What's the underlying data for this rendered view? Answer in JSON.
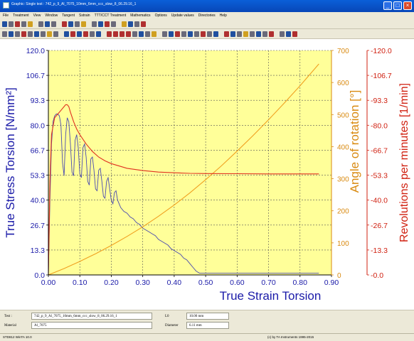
{
  "window": {
    "title": "Graphic: Single test : 742_p_9_Al_7075_10mm_6mm_ccc_slow_8_06.29.16_1",
    "minimize": "_",
    "maximize": "□",
    "close": "×"
  },
  "menu": [
    "File",
    "Treatment",
    "View",
    "Window",
    "Tangent",
    "Sstrain",
    "TTT/CCT Treatment",
    "Mathematics",
    "Options",
    "Update values",
    "Directories",
    "Help"
  ],
  "chart_data": {
    "type": "line",
    "xlabel": "True Strain Torsion",
    "ylabel_left": "True Stress Torsion  [N/mm²]",
    "ylabel_right1": "Angle of rotation  [°]",
    "ylabel_right2": "Revolutions per minutes  [1/min]",
    "x_ticks": [
      "0.00",
      "0.10",
      "0.20",
      "0.30",
      "0.40",
      "0.50",
      "0.60",
      "0.70",
      "0.80",
      "0.90"
    ],
    "y_left_ticks": [
      "0.0",
      "13.3",
      "26.7",
      "40.0",
      "53.3",
      "66.7",
      "80.0",
      "93.3",
      "106.7",
      "120.0"
    ],
    "y_right1_ticks": [
      "0",
      "100",
      "200",
      "300",
      "400",
      "500",
      "600",
      "700"
    ],
    "y_right2_ticks": [
      "-0.0",
      "-13.3",
      "-26.7",
      "-40.0",
      "-53.3",
      "-66.7",
      "-80.0",
      "-93.3",
      "-106.7",
      "-120.0"
    ],
    "xlim": [
      0,
      0.9
    ],
    "ylim_left": [
      0,
      120
    ],
    "ylim_right1": [
      0,
      700
    ],
    "grid": true,
    "colors": {
      "background": "#ffff99",
      "stress": "#4a4ab0",
      "angle": "#f0a020",
      "rpm": "#e03020",
      "left_axis": "#1a1aa8",
      "right1_axis": "#d98a10",
      "right2_axis": "#d02010"
    },
    "series": [
      {
        "id": "stress",
        "axis": "left",
        "points": [
          [
            0,
            0
          ],
          [
            0.005,
            40
          ],
          [
            0.01,
            70
          ],
          [
            0.015,
            82
          ],
          [
            0.02,
            85
          ],
          [
            0.025,
            86
          ],
          [
            0.03,
            86
          ],
          [
            0.035,
            85
          ],
          [
            0.04,
            80
          ],
          [
            0.045,
            60
          ],
          [
            0.05,
            53
          ],
          [
            0.055,
            75
          ],
          [
            0.06,
            84
          ],
          [
            0.065,
            82
          ],
          [
            0.07,
            70
          ],
          [
            0.075,
            55
          ],
          [
            0.08,
            53
          ],
          [
            0.085,
            72
          ],
          [
            0.09,
            75
          ],
          [
            0.095,
            68
          ],
          [
            0.1,
            54
          ],
          [
            0.105,
            52
          ],
          [
            0.11,
            68
          ],
          [
            0.115,
            70
          ],
          [
            0.12,
            63
          ],
          [
            0.125,
            50
          ],
          [
            0.13,
            48
          ],
          [
            0.135,
            62
          ],
          [
            0.14,
            63
          ],
          [
            0.145,
            56
          ],
          [
            0.15,
            46
          ],
          [
            0.155,
            45
          ],
          [
            0.16,
            56
          ],
          [
            0.165,
            57
          ],
          [
            0.17,
            50
          ],
          [
            0.175,
            42
          ],
          [
            0.18,
            41
          ],
          [
            0.185,
            50
          ],
          [
            0.19,
            52
          ],
          [
            0.195,
            46
          ],
          [
            0.2,
            40
          ],
          [
            0.205,
            38
          ],
          [
            0.21,
            44
          ],
          [
            0.215,
            45
          ],
          [
            0.22,
            40
          ],
          [
            0.23,
            36
          ],
          [
            0.24,
            34
          ],
          [
            0.25,
            33
          ],
          [
            0.26,
            31
          ],
          [
            0.27,
            30
          ],
          [
            0.28,
            28
          ],
          [
            0.29,
            27
          ],
          [
            0.3,
            25
          ],
          [
            0.31,
            24
          ],
          [
            0.32,
            23
          ],
          [
            0.33,
            22
          ],
          [
            0.34,
            21
          ],
          [
            0.35,
            19
          ],
          [
            0.36,
            18
          ],
          [
            0.37,
            17
          ],
          [
            0.38,
            16
          ],
          [
            0.39,
            14
          ],
          [
            0.4,
            13
          ],
          [
            0.41,
            12
          ],
          [
            0.42,
            11
          ],
          [
            0.43,
            9
          ],
          [
            0.44,
            8
          ],
          [
            0.45,
            6
          ],
          [
            0.46,
            4
          ],
          [
            0.47,
            2
          ],
          [
            0.48,
            1
          ],
          [
            0.5,
            1
          ],
          [
            0.55,
            1
          ],
          [
            0.6,
            1
          ],
          [
            0.65,
            1
          ],
          [
            0.7,
            1
          ],
          [
            0.75,
            1
          ],
          [
            0.8,
            1
          ],
          [
            0.86,
            1
          ]
        ]
      },
      {
        "id": "angle",
        "axis": "right1",
        "points": [
          [
            0,
            0
          ],
          [
            0.05,
            20
          ],
          [
            0.1,
            42
          ],
          [
            0.15,
            66
          ],
          [
            0.2,
            92
          ],
          [
            0.25,
            120
          ],
          [
            0.3,
            150
          ],
          [
            0.35,
            183
          ],
          [
            0.4,
            218
          ],
          [
            0.45,
            256
          ],
          [
            0.5,
            297
          ],
          [
            0.55,
            340
          ],
          [
            0.6,
            386
          ],
          [
            0.65,
            434
          ],
          [
            0.7,
            484
          ],
          [
            0.75,
            536
          ],
          [
            0.8,
            590
          ],
          [
            0.86,
            658
          ]
        ]
      },
      {
        "id": "rpm",
        "axis": "left",
        "points": [
          [
            0,
            0
          ],
          [
            0.005,
            50
          ],
          [
            0.01,
            75
          ],
          [
            0.02,
            84
          ],
          [
            0.03,
            86
          ],
          [
            0.04,
            88
          ],
          [
            0.05,
            90
          ],
          [
            0.055,
            91
          ],
          [
            0.06,
            91
          ],
          [
            0.065,
            90
          ],
          [
            0.07,
            87
          ],
          [
            0.08,
            82
          ],
          [
            0.09,
            78
          ],
          [
            0.1,
            75
          ],
          [
            0.12,
            70
          ],
          [
            0.14,
            66
          ],
          [
            0.16,
            63
          ],
          [
            0.18,
            61
          ],
          [
            0.2,
            59.5
          ],
          [
            0.25,
            57
          ],
          [
            0.3,
            55.8
          ],
          [
            0.35,
            55
          ],
          [
            0.4,
            54.6
          ],
          [
            0.45,
            54.3
          ],
          [
            0.5,
            54.2
          ],
          [
            0.6,
            54.1
          ],
          [
            0.7,
            54
          ],
          [
            0.86,
            54
          ]
        ]
      }
    ]
  },
  "info": {
    "test_label": "Test :",
    "test_value": "742_p_9_Al_7075_10mm_6mm_ccc_slow_8_06.29.16_1",
    "material_label": "Material",
    "material_value": "Al_7075",
    "l0_label": "L0",
    "l0_value": "10.00 mm",
    "diameter_label": "Diameter",
    "diameter_value": "6.11 mm"
  },
  "status": {
    "left": "STD812  WinTA 10.0",
    "right": "(c) by TA Instruments 1995-2015"
  }
}
